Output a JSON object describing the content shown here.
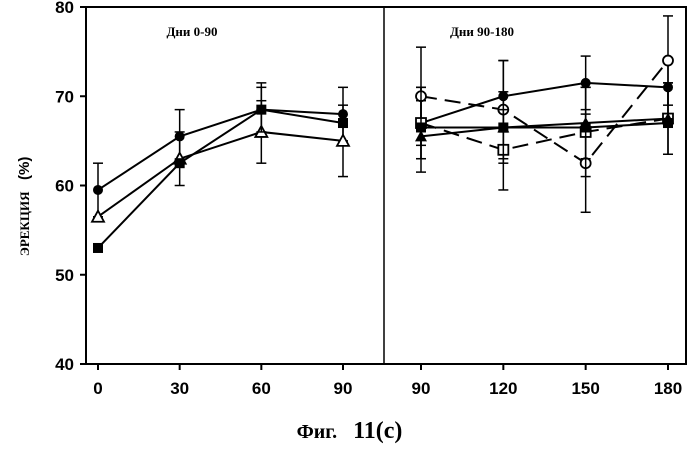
{
  "caption": {
    "prefix": "Фиг.",
    "number": "11(c)"
  },
  "chart_data": {
    "type": "line",
    "ylabel": "ЭРЕКЦИЯ",
    "ylabel_unit": "(%)",
    "ylim": [
      40,
      80
    ],
    "yticks": [
      40,
      50,
      60,
      70,
      80
    ],
    "panels": [
      {
        "title": "Дни 0-90",
        "x": [
          0,
          30,
          60,
          90
        ],
        "xticks": [
          "0",
          "30",
          "60",
          "90"
        ],
        "series": [
          {
            "marker": "filled-circle",
            "dashed": false,
            "values": [
              59.5,
              65.5,
              68.5,
              68.0
            ],
            "err": [
              3.0,
              3.0,
              3.0,
              3.0
            ]
          },
          {
            "marker": "open-triangle",
            "dashed": false,
            "values": [
              56.5,
              63.0,
              66.0,
              65.0
            ],
            "err": [
              0,
              3.0,
              3.5,
              4.0
            ]
          },
          {
            "marker": "filled-square",
            "dashed": false,
            "values": [
              53.0,
              62.5,
              68.5,
              67.0
            ],
            "err": [
              0,
              0,
              2.5,
              0
            ]
          }
        ]
      },
      {
        "title": "Дни 90-180",
        "x": [
          90,
          120,
          150,
          180
        ],
        "xticks": [
          "90",
          "120",
          "150",
          "180"
        ],
        "series": [
          {
            "marker": "filled-circle",
            "dashed": false,
            "values": [
              67.0,
              70.0,
              71.5,
              71.0
            ],
            "err": [
              4.0,
              4.0,
              3.0,
              3.0
            ]
          },
          {
            "marker": "open-circle",
            "dashed": true,
            "values": [
              70.0,
              68.5,
              62.5,
              74.0
            ],
            "err": [
              5.5,
              5.5,
              5.5,
              5.0
            ]
          },
          {
            "marker": "open-square",
            "dashed": true,
            "values": [
              67.0,
              64.0,
              66.0,
              67.5
            ],
            "err": [
              4.0,
              4.5,
              5.0,
              4.0
            ]
          },
          {
            "marker": "filled-triangle",
            "dashed": false,
            "values": [
              65.5,
              66.5,
              67.0,
              67.5
            ],
            "err": [
              4.0,
              4.0,
              4.0,
              4.0
            ]
          },
          {
            "marker": "filled-square",
            "dashed": false,
            "values": [
              66.5,
              66.5,
              66.5,
              67.0
            ],
            "err": [
              0,
              0,
              0,
              0
            ]
          }
        ]
      }
    ]
  }
}
